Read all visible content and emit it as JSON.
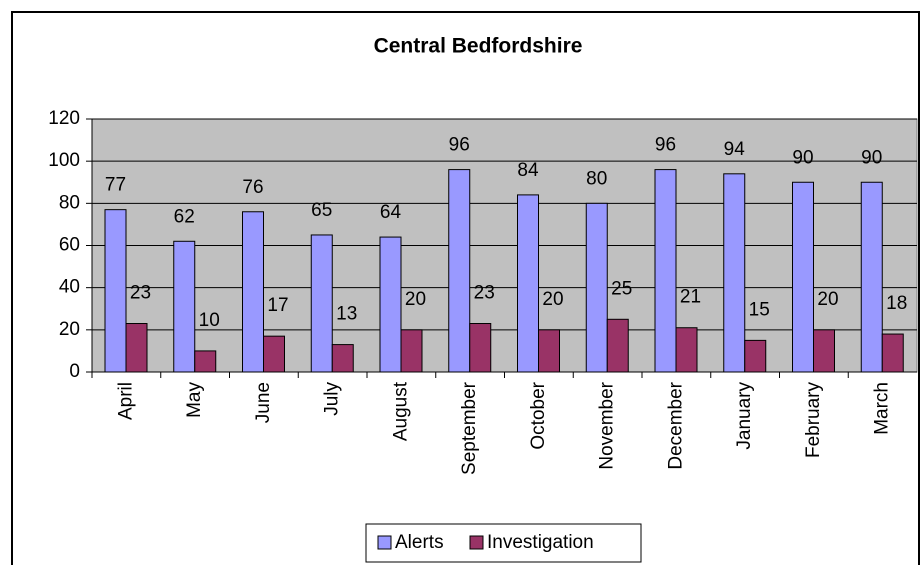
{
  "chart_data": {
    "type": "bar",
    "title": "Central Bedfordshire",
    "categories": [
      "April",
      "May",
      "June",
      "July",
      "August",
      "September",
      "October",
      "November",
      "December",
      "January",
      "February",
      "March"
    ],
    "series": [
      {
        "name": "Alerts",
        "color": "#9999ff",
        "values": [
          77,
          62,
          76,
          65,
          64,
          96,
          84,
          80,
          96,
          94,
          90,
          90
        ]
      },
      {
        "name": "Investigation",
        "color": "#993366",
        "values": [
          23,
          10,
          17,
          13,
          20,
          23,
          20,
          25,
          21,
          15,
          20,
          18
        ]
      }
    ],
    "ylim": [
      0,
      120
    ],
    "yticks": [
      0,
      20,
      40,
      60,
      80,
      100,
      120
    ],
    "grid": true,
    "legend": "bottom"
  }
}
